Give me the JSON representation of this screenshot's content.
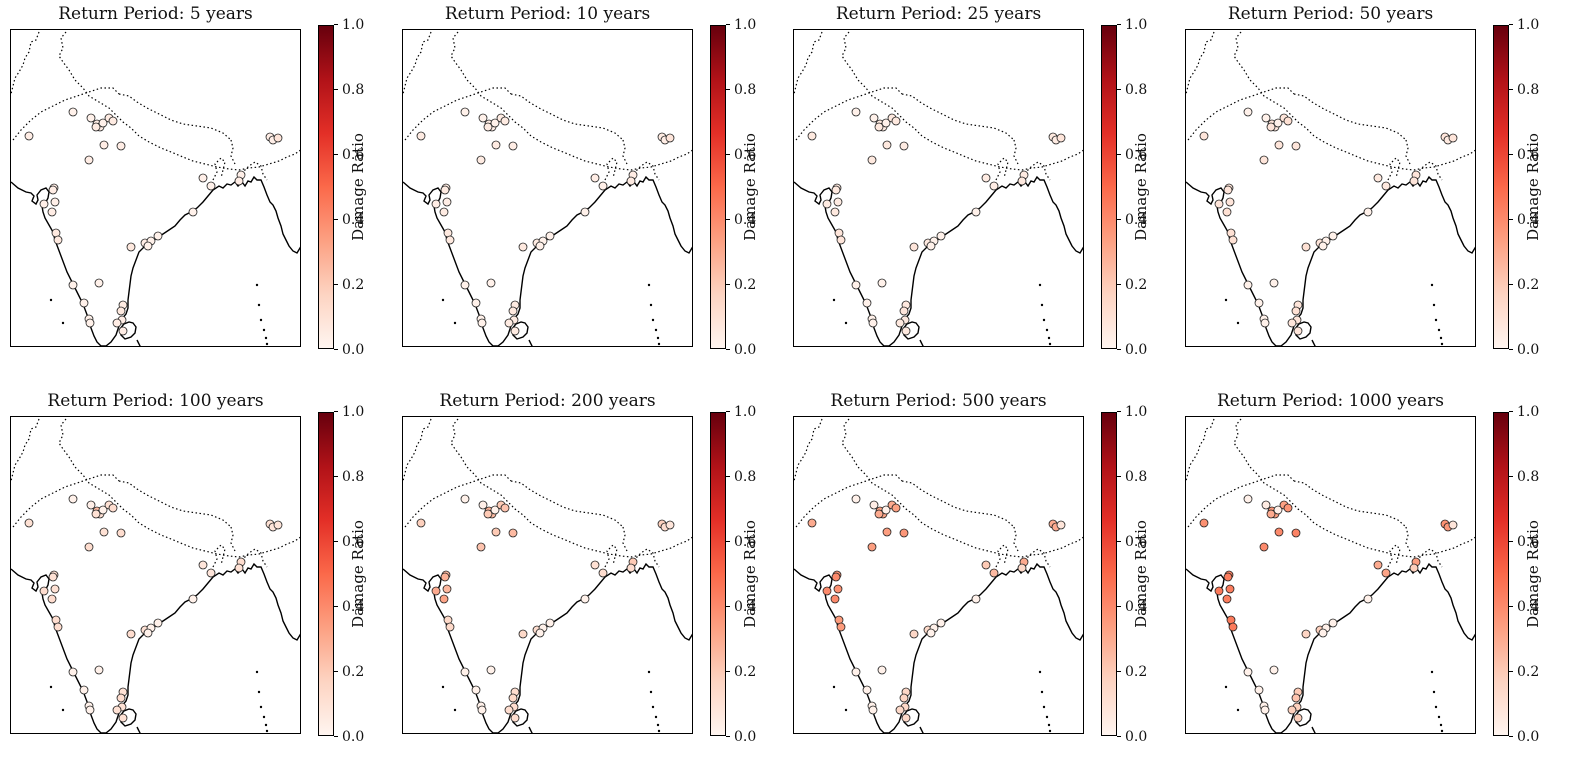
{
  "colorbar": {
    "label": "Damage Ratio",
    "ticks": [
      "0.0",
      "0.2",
      "0.4",
      "0.6",
      "0.8",
      "1.0"
    ],
    "colormap": [
      "#fff5f0",
      "#fdd4c2",
      "#fca082",
      "#fb694a",
      "#e32f27",
      "#b11218",
      "#67000d"
    ]
  },
  "panels": [
    {
      "title": "Return Period: 5 years",
      "return_period": 5
    },
    {
      "title": "Return Period: 10 years",
      "return_period": 10
    },
    {
      "title": "Return Period: 25 years",
      "return_period": 25
    },
    {
      "title": "Return Period: 50 years",
      "return_period": 50
    },
    {
      "title": "Return Period: 100 years",
      "return_period": 100
    },
    {
      "title": "Return Period: 200 years",
      "return_period": 200
    },
    {
      "title": "Return Period: 500 years",
      "return_period": 500
    },
    {
      "title": "Return Period: 1000 years",
      "return_period": 1000
    }
  ],
  "site_damage_ratios": [
    [
      0.02,
      0.02,
      0.02,
      0.02,
      0.02,
      0.02,
      0.02,
      0.02
    ],
    [
      0.02,
      0.02,
      0.02,
      0.02,
      0.03,
      0.03,
      0.04,
      0.05
    ],
    [
      0.04,
      0.05,
      0.06,
      0.08,
      0.25,
      0.28,
      0.32,
      0.36
    ],
    [
      0.04,
      0.04,
      0.05,
      0.07,
      0.1,
      0.25,
      0.32,
      0.34
    ],
    [
      0.02,
      0.02,
      0.02,
      0.02,
      0.02,
      0.02,
      0.02,
      0.02
    ],
    [
      0.05,
      0.05,
      0.06,
      0.08,
      0.1,
      0.2,
      0.3,
      0.3
    ],
    [
      0.05,
      0.05,
      0.06,
      0.08,
      0.1,
      0.2,
      0.3,
      0.33
    ],
    [
      0.05,
      0.05,
      0.06,
      0.1,
      0.12,
      0.22,
      0.33,
      0.37
    ],
    [
      0.04,
      0.04,
      0.05,
      0.08,
      0.12,
      0.25,
      0.36,
      0.42
    ],
    [
      0.04,
      0.05,
      0.06,
      0.08,
      0.1,
      0.2,
      0.34,
      0.4
    ],
    [
      0.04,
      0.05,
      0.06,
      0.08,
      0.12,
      0.22,
      0.34,
      0.4
    ],
    [
      0.04,
      0.05,
      0.06,
      0.08,
      0.1,
      0.18,
      0.3,
      0.38
    ],
    [
      0.04,
      0.05,
      0.06,
      0.08,
      0.1,
      0.18,
      0.3,
      0.38
    ],
    [
      0.03,
      0.04,
      0.05,
      0.06,
      0.08,
      0.12,
      0.3,
      0.36
    ],
    [
      0.08,
      0.08,
      0.08,
      0.08,
      0.08,
      0.08,
      0.08,
      0.08
    ],
    [
      0.03,
      0.04,
      0.05,
      0.06,
      0.08,
      0.1,
      0.2,
      0.3
    ],
    [
      0.02,
      0.03,
      0.04,
      0.06,
      0.08,
      0.12,
      0.25,
      0.32
    ],
    [
      0.03,
      0.04,
      0.05,
      0.08,
      0.12,
      0.2,
      0.3,
      0.34
    ],
    [
      0.04,
      0.05,
      0.06,
      0.08,
      0.1,
      0.12,
      0.14,
      0.18
    ],
    [
      0.04,
      0.05,
      0.06,
      0.08,
      0.12,
      0.25,
      0.38,
      0.42
    ],
    [
      0.03,
      0.04,
      0.05,
      0.08,
      0.12,
      0.3,
      0.4,
      0.45
    ],
    [
      0.04,
      0.05,
      0.06,
      0.08,
      0.1,
      0.28,
      0.4,
      0.44
    ],
    [
      0.03,
      0.04,
      0.05,
      0.08,
      0.1,
      0.26,
      0.38,
      0.44
    ],
    [
      0.04,
      0.05,
      0.06,
      0.1,
      0.12,
      0.32,
      0.4,
      0.44
    ],
    [
      0.06,
      0.06,
      0.08,
      0.1,
      0.12,
      0.14,
      0.35,
      0.45
    ],
    [
      0.06,
      0.06,
      0.08,
      0.1,
      0.12,
      0.14,
      0.35,
      0.45
    ],
    [
      0.06,
      0.06,
      0.08,
      0.1,
      0.12,
      0.14,
      0.15,
      0.16
    ],
    [
      0.04,
      0.05,
      0.06,
      0.08,
      0.1,
      0.12,
      0.14,
      0.18
    ],
    [
      0.02,
      0.02,
      0.02,
      0.02,
      0.02,
      0.02,
      0.02,
      0.02
    ],
    [
      0.02,
      0.02,
      0.02,
      0.02,
      0.02,
      0.02,
      0.02,
      0.02
    ],
    [
      0.02,
      0.02,
      0.02,
      0.02,
      0.02,
      0.02,
      0.02,
      0.02
    ],
    [
      0.02,
      0.02,
      0.02,
      0.02,
      0.02,
      0.02,
      0.02,
      0.02
    ],
    [
      0.02,
      0.02,
      0.02,
      0.02,
      0.02,
      0.02,
      0.02,
      0.02
    ],
    [
      0.02,
      0.02,
      0.02,
      0.02,
      0.02,
      0.02,
      0.02,
      0.02
    ],
    [
      0.02,
      0.02,
      0.02,
      0.02,
      0.02,
      0.02,
      0.02,
      0.02
    ],
    [
      0.02,
      0.02,
      0.02,
      0.02,
      0.02,
      0.02,
      0.02,
      0.02
    ],
    [
      0.02,
      0.02,
      0.02,
      0.02,
      0.02,
      0.02,
      0.02,
      0.02
    ],
    [
      0.05,
      0.05,
      0.06,
      0.08,
      0.1,
      0.12,
      0.15,
      0.2
    ],
    [
      0.06,
      0.06,
      0.08,
      0.1,
      0.12,
      0.14,
      0.16,
      0.22
    ],
    [
      0.04,
      0.05,
      0.06,
      0.08,
      0.1,
      0.12,
      0.14,
      0.18
    ],
    [
      0.04,
      0.05,
      0.06,
      0.08,
      0.1,
      0.12,
      0.14,
      0.18
    ],
    [
      0.04,
      0.05,
      0.06,
      0.08,
      0.1,
      0.12,
      0.14,
      0.18
    ]
  ]
}
